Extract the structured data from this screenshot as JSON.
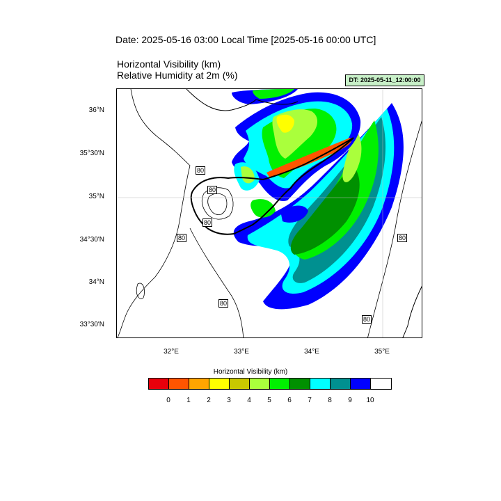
{
  "header": {
    "date_title": "Date: 2025-05-16  03:00 Local Time [2025-05-16  00:00 UTC]",
    "var_title_1": "Horizontal Visibility   (km)",
    "var_title_2": "Relative Humidity at 2m   (%)",
    "dt_label": "DT: 2025-05-11_12:00:00"
  },
  "map": {
    "lat_labels": [
      "36°N",
      "35°30'N",
      "35°N",
      "34°30'N",
      "34°N",
      "33°30'N"
    ],
    "lon_labels": [
      "32°E",
      "33°E",
      "34°E",
      "35°E"
    ],
    "contour_labels": [
      "80",
      "80",
      "80",
      "80",
      "80",
      "80",
      "80"
    ]
  },
  "colorbar": {
    "title": "Horizontal Visibility  (km)",
    "colors": [
      "#e8000b",
      "#ff5500",
      "#ffa500",
      "#ffff00",
      "#c8c800",
      "#aaff3c",
      "#00f000",
      "#009000",
      "#00ffff",
      "#009090",
      "#0000ff",
      "#ffffff"
    ],
    "labels": [
      "0",
      "1",
      "2",
      "3",
      "4",
      "5",
      "6",
      "7",
      "8",
      "9",
      "10"
    ]
  }
}
